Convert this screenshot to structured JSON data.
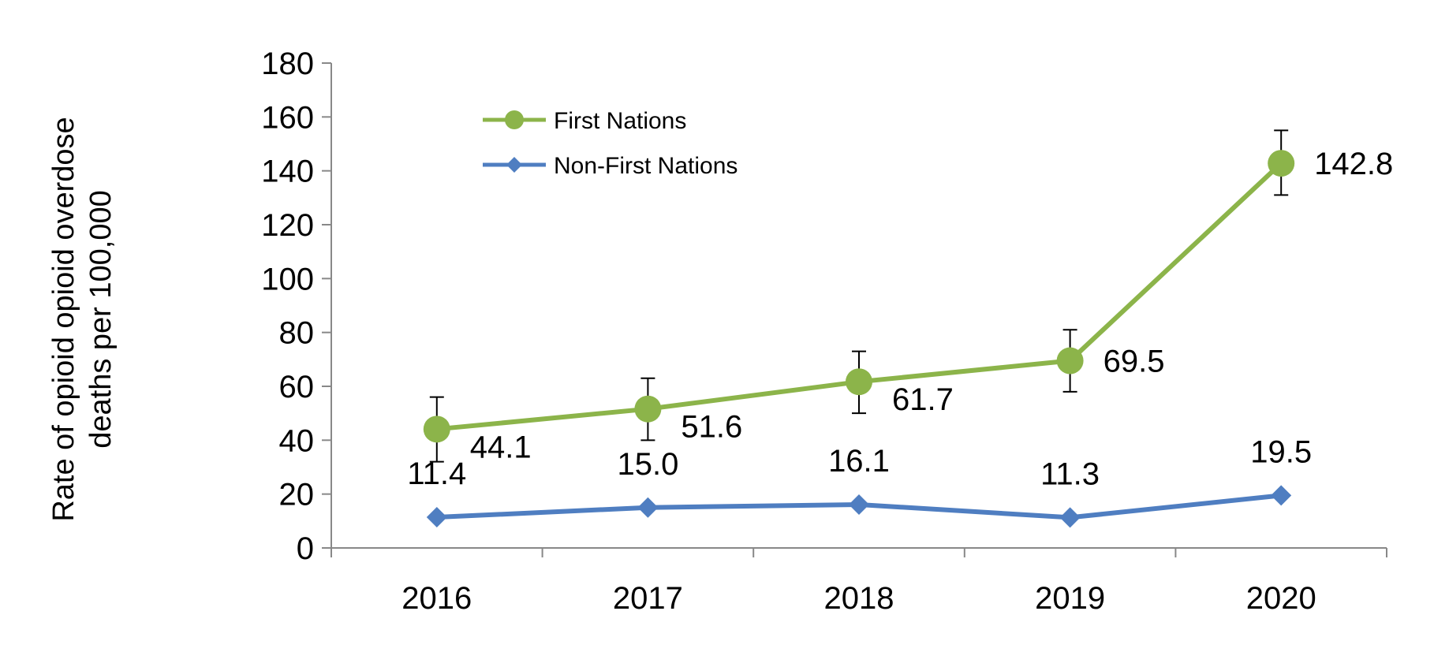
{
  "chart_data": {
    "type": "line",
    "title": "",
    "xlabel": "",
    "ylabel_lines": [
      "Rate of opioid opioid overdose",
      "deaths per 100,000"
    ],
    "categories": [
      "2016",
      "2017",
      "2018",
      "2019",
      "2020"
    ],
    "ylim": [
      0,
      180
    ],
    "y_ticks": [
      0,
      20,
      40,
      60,
      80,
      100,
      120,
      140,
      160,
      180
    ],
    "grid": false,
    "legend_position": "top-left",
    "series": [
      {
        "name": "First Nations",
        "color": "#8CB44A",
        "marker": "circle",
        "values": [
          44.1,
          51.6,
          61.7,
          69.5,
          142.8
        ],
        "labels": [
          "44.1",
          "51.6",
          "61.7",
          "69.5",
          "142.8"
        ],
        "error_low": [
          32,
          40,
          50,
          58,
          131
        ],
        "error_high": [
          56,
          63,
          73,
          81,
          155
        ]
      },
      {
        "name": "Non-First Nations",
        "color": "#4F7EC1",
        "marker": "diamond",
        "values": [
          11.4,
          15.0,
          16.1,
          11.3,
          19.5
        ],
        "labels": [
          "11.4",
          "15.0",
          "16.1",
          "11.3",
          "19.5"
        ]
      }
    ]
  }
}
